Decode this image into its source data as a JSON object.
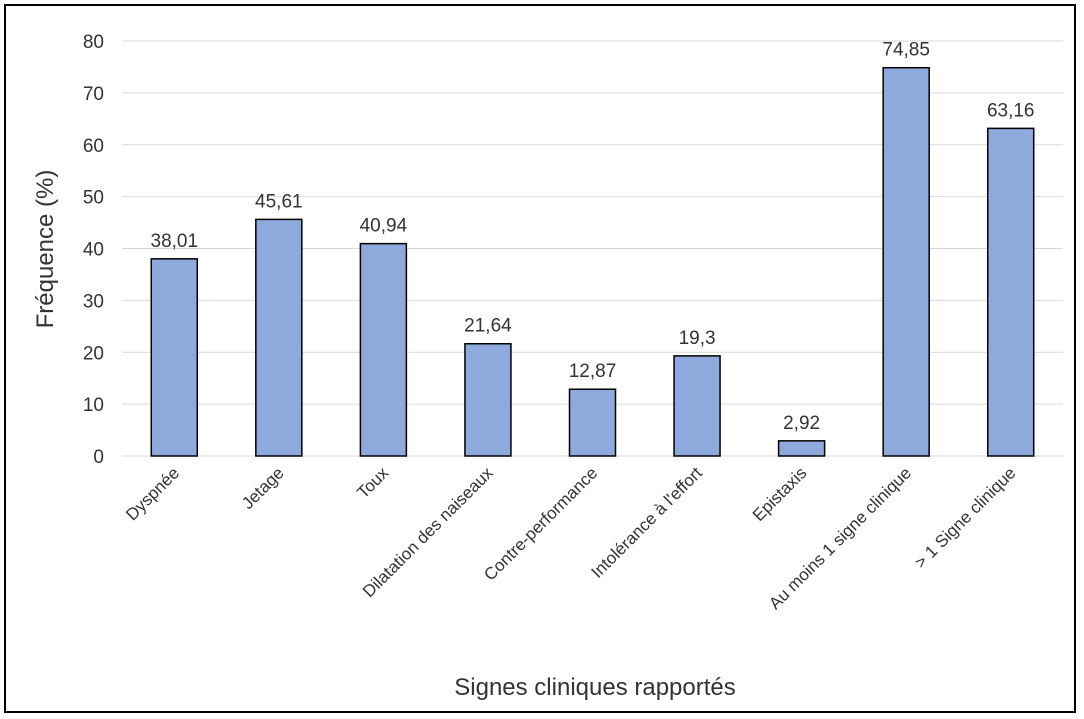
{
  "chart_data": {
    "type": "bar",
    "categories": [
      "Dyspnée",
      "Jetage",
      "Toux",
      "Dilatation des naiseaux",
      "Contre-performance",
      "Intolérance à l'effort",
      "Epistaxis",
      "Au moins 1 signe clinique",
      "> 1 Signe clinique"
    ],
    "values": [
      38.01,
      45.61,
      40.94,
      21.64,
      12.87,
      19.3,
      2.92,
      74.85,
      63.16
    ],
    "data_labels": [
      "38,01",
      "45,61",
      "40,94",
      "21,64",
      "12,87",
      "19,3",
      "2,92",
      "74,85",
      "63,16"
    ],
    "yticks": [
      "0",
      "10",
      "20",
      "30",
      "40",
      "50",
      "60",
      "70",
      "80"
    ],
    "ylim": [
      0,
      80
    ],
    "xlabel": "Signes cliniques rapportés",
    "ylabel": "Fréquence (%)",
    "grid": true,
    "legend": "none",
    "bar_color": "#8EA9DB",
    "bar_edge_color": "#000000",
    "grid_color": "#D9D9D9"
  }
}
